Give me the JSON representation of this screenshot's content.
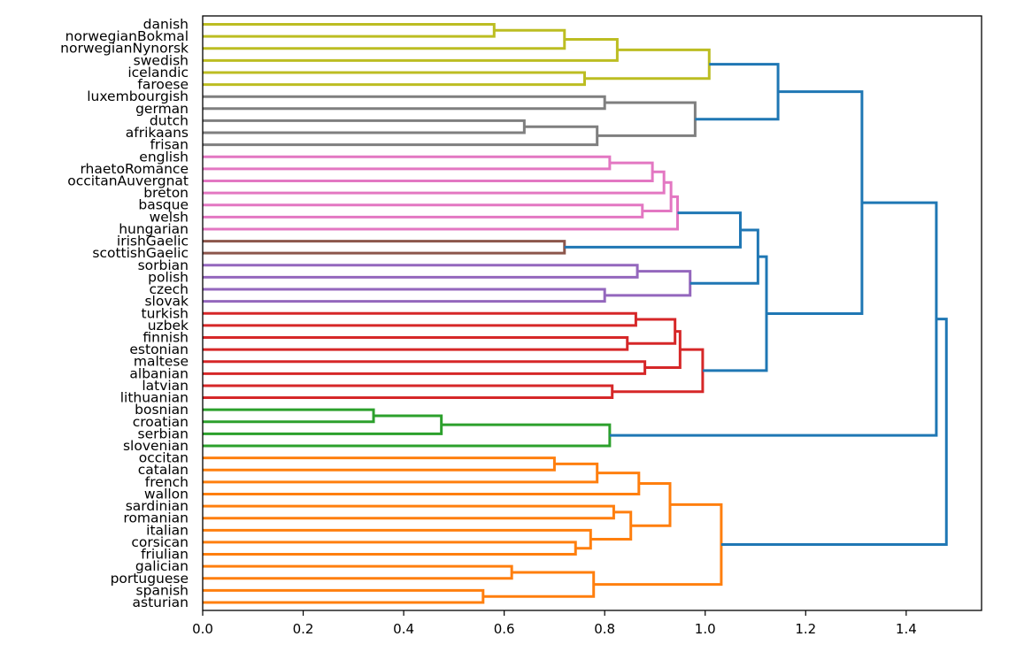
{
  "chart_data": {
    "type": "dendrogram",
    "orientation": "horizontal",
    "xlim": [
      0,
      1.55
    ],
    "x_ticks": [
      0.0,
      0.2,
      0.4,
      0.6,
      0.8,
      1.0,
      1.2,
      1.4
    ],
    "x_tick_labels": [
      "0.0",
      "0.2",
      "0.4",
      "0.6",
      "0.8",
      "1.0",
      "1.2",
      "1.4"
    ],
    "xlabel": "",
    "ylabel": "",
    "grid": false,
    "leaves": [
      "danish",
      "norwegianBokmal",
      "norwegianNynorsk",
      "swedish",
      "icelandic",
      "faroese",
      "luxembourgish",
      "german",
      "dutch",
      "afrikaans",
      "frisan",
      "english",
      "rhaetoRomance",
      "occitanAuvergnat",
      "breton",
      "basque",
      "welsh",
      "hungarian",
      "irishGaelic",
      "scottishGaelic",
      "sorbian",
      "polish",
      "czech",
      "slovak",
      "turkish",
      "uzbek",
      "finnish",
      "estonian",
      "maltese",
      "albanian",
      "latvian",
      "lithuanian",
      "bosnian",
      "croatian",
      "serbian",
      "slovenian",
      "occitan",
      "catalan",
      "french",
      "wallon",
      "sardinian",
      "romanian",
      "italian",
      "corsican",
      "friulian",
      "galician",
      "portuguese",
      "spanish",
      "asturian"
    ],
    "colors": {
      "c_olive": "#bcbd22",
      "c_gray": "#7f7f7f",
      "c_pink": "#e377c2",
      "c_brown": "#8c564b",
      "c_purple": "#9467bd",
      "c_red": "#d62728",
      "c_green": "#2ca02c",
      "c_orange": "#ff7f0e",
      "c_blue": "#1f77b4"
    },
    "merges": [
      {
        "id": "n1",
        "a": "danish",
        "b": "norwegianBokmal",
        "height": 0.58,
        "color": "c_olive"
      },
      {
        "id": "n2",
        "a": "n1",
        "b": "norwegianNynorsk",
        "height": 0.72,
        "color": "c_olive"
      },
      {
        "id": "n3",
        "a": "n2",
        "b": "swedish",
        "height": 0.825,
        "color": "c_olive"
      },
      {
        "id": "n4",
        "a": "icelandic",
        "b": "faroese",
        "height": 0.76,
        "color": "c_olive"
      },
      {
        "id": "n5",
        "a": "n3",
        "b": "n4",
        "height": 1.008,
        "color": "c_olive"
      },
      {
        "id": "n6",
        "a": "luxembourgish",
        "b": "german",
        "height": 0.8,
        "color": "c_gray"
      },
      {
        "id": "n7",
        "a": "dutch",
        "b": "afrikaans",
        "height": 0.64,
        "color": "c_gray"
      },
      {
        "id": "n8",
        "a": "n7",
        "b": "frisan",
        "height": 0.785,
        "color": "c_gray"
      },
      {
        "id": "n9",
        "a": "n6",
        "b": "n8",
        "height": 0.98,
        "color": "c_gray"
      },
      {
        "id": "n10",
        "a": "n5",
        "b": "n9",
        "height": 1.145,
        "color": "c_blue"
      },
      {
        "id": "n11",
        "a": "english",
        "b": "rhaetoRomance",
        "height": 0.81,
        "color": "c_pink"
      },
      {
        "id": "n12",
        "a": "n11",
        "b": "occitanAuvergnat",
        "height": 0.895,
        "color": "c_pink"
      },
      {
        "id": "n13",
        "a": "n12",
        "b": "breton",
        "height": 0.918,
        "color": "c_pink"
      },
      {
        "id": "n14",
        "a": "basque",
        "b": "welsh",
        "height": 0.875,
        "color": "c_pink"
      },
      {
        "id": "n15",
        "a": "n13",
        "b": "n14",
        "height": 0.932,
        "color": "c_pink"
      },
      {
        "id": "n16",
        "a": "n15",
        "b": "hungarian",
        "height": 0.945,
        "color": "c_pink"
      },
      {
        "id": "n17",
        "a": "irishGaelic",
        "b": "scottishGaelic",
        "height": 0.72,
        "color": "c_brown"
      },
      {
        "id": "n18",
        "a": "n16",
        "b": "n17",
        "height": 1.07,
        "color": "c_blue"
      },
      {
        "id": "n19",
        "a": "sorbian",
        "b": "polish",
        "height": 0.865,
        "color": "c_purple"
      },
      {
        "id": "n20",
        "a": "czech",
        "b": "slovak",
        "height": 0.8,
        "color": "c_purple"
      },
      {
        "id": "n21",
        "a": "n19",
        "b": "n20",
        "height": 0.97,
        "color": "c_purple"
      },
      {
        "id": "n22",
        "a": "n18",
        "b": "n21",
        "height": 1.105,
        "color": "c_blue"
      },
      {
        "id": "n23",
        "a": "turkish",
        "b": "uzbek",
        "height": 0.862,
        "color": "c_red"
      },
      {
        "id": "n24",
        "a": "finnish",
        "b": "estonian",
        "height": 0.845,
        "color": "c_red"
      },
      {
        "id": "n25",
        "a": "n23",
        "b": "n24",
        "height": 0.94,
        "color": "c_red"
      },
      {
        "id": "n26",
        "a": "maltese",
        "b": "albanian",
        "height": 0.88,
        "color": "c_red"
      },
      {
        "id": "n27",
        "a": "n25",
        "b": "n26",
        "height": 0.95,
        "color": "c_red"
      },
      {
        "id": "n28",
        "a": "latvian",
        "b": "lithuanian",
        "height": 0.815,
        "color": "c_red"
      },
      {
        "id": "n29",
        "a": "n27",
        "b": "n28",
        "height": 0.995,
        "color": "c_red"
      },
      {
        "id": "n30",
        "a": "n22",
        "b": "n29",
        "height": 1.122,
        "color": "c_blue"
      },
      {
        "id": "n31",
        "a": "n10",
        "b": "n30",
        "height": 1.312,
        "color": "c_blue"
      },
      {
        "id": "n32",
        "a": "bosnian",
        "b": "croatian",
        "height": 0.34,
        "color": "c_green"
      },
      {
        "id": "n33",
        "a": "n32",
        "b": "serbian",
        "height": 0.475,
        "color": "c_green"
      },
      {
        "id": "n34",
        "a": "n33",
        "b": "slovenian",
        "height": 0.81,
        "color": "c_green"
      },
      {
        "id": "n35",
        "a": "n31",
        "b": "n34",
        "height": 1.46,
        "color": "c_blue"
      },
      {
        "id": "n36",
        "a": "occitan",
        "b": "catalan",
        "height": 0.7,
        "color": "c_orange"
      },
      {
        "id": "n37",
        "a": "n36",
        "b": "french",
        "height": 0.785,
        "color": "c_orange"
      },
      {
        "id": "n38",
        "a": "n37",
        "b": "wallon",
        "height": 0.868,
        "color": "c_orange"
      },
      {
        "id": "n39",
        "a": "sardinian",
        "b": "romanian",
        "height": 0.818,
        "color": "c_orange"
      },
      {
        "id": "n40",
        "a": "corsican",
        "b": "friulian",
        "height": 0.742,
        "color": "c_orange"
      },
      {
        "id": "n41",
        "a": "italian",
        "b": "n40",
        "height": 0.772,
        "color": "c_orange"
      },
      {
        "id": "n42",
        "a": "n39",
        "b": "n41",
        "height": 0.852,
        "color": "c_orange"
      },
      {
        "id": "n43",
        "a": "n38",
        "b": "n42",
        "height": 0.93,
        "color": "c_orange"
      },
      {
        "id": "n44",
        "a": "galician",
        "b": "portuguese",
        "height": 0.615,
        "color": "c_orange"
      },
      {
        "id": "n45",
        "a": "spanish",
        "b": "asturian",
        "height": 0.558,
        "color": "c_orange"
      },
      {
        "id": "n46",
        "a": "n44",
        "b": "n45",
        "height": 0.778,
        "color": "c_orange"
      },
      {
        "id": "n47",
        "a": "n43",
        "b": "n46",
        "height": 1.032,
        "color": "c_orange"
      },
      {
        "id": "n48",
        "a": "n35",
        "b": "n47",
        "height": 1.48,
        "color": "c_blue"
      }
    ]
  }
}
